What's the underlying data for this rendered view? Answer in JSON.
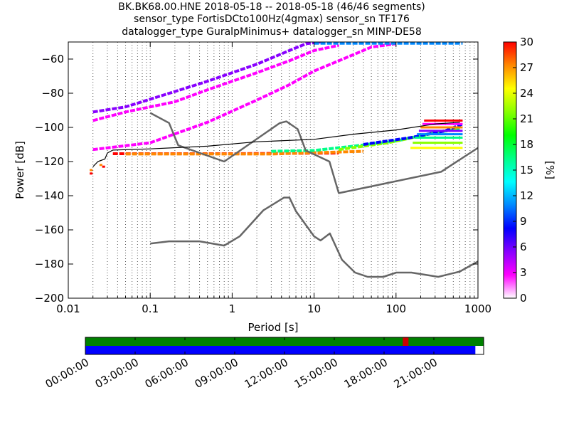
{
  "chart_data": {
    "type": "heatmap",
    "title_lines": [
      "BK.BK68.00.HNE   2018-05-18 -- 2018-05-18  (46/46 segments)",
      "sensor_type FortisDCto100Hz(4gmax) sensor_sn TF176",
      "datalogger_type GuralpMinimus+ datalogger_sn MINP-DE58"
    ],
    "xlabel": "Period [s]",
    "ylabel": "Power [dB]",
    "xscale": "log",
    "xlim": [
      0.01,
      1000
    ],
    "ylim": [
      -200,
      -50
    ],
    "x_ticks": [
      0.01,
      0.1,
      1,
      10,
      100,
      1000
    ],
    "x_tick_labels": [
      "0.01",
      "0.1",
      "1",
      "10",
      "100",
      "1000"
    ],
    "y_ticks": [
      -200,
      -180,
      -160,
      -140,
      -120,
      -100,
      -80,
      -60
    ],
    "y_tick_labels": [
      "−200",
      "−180",
      "−160",
      "−140",
      "−120",
      "−100",
      "−80",
      "−60"
    ],
    "grid": "dotted-vertical",
    "colorbar": {
      "label": "[%]",
      "range": [
        0,
        30
      ],
      "ticks": [
        0,
        3,
        6,
        9,
        12,
        15,
        18,
        21,
        24,
        27,
        30
      ],
      "tick_labels": [
        "0",
        "3",
        "6",
        "9",
        "12",
        "15",
        "18",
        "21",
        "24",
        "27",
        "30"
      ],
      "colors": [
        "#ffffff",
        "#ff00ff",
        "#8800ff",
        "#0000ff",
        "#0088ff",
        "#00ffff",
        "#00ff88",
        "#00ff00",
        "#88ff00",
        "#ffff00",
        "#ff8800",
        "#ff0000"
      ]
    },
    "series": [
      {
        "role": "high-noise-model",
        "color": "#666666",
        "points": [
          [
            0.1,
            -91.5
          ],
          [
            0.17,
            -97.4
          ],
          [
            0.22,
            -110.5
          ],
          [
            0.8,
            -120
          ],
          [
            3.8,
            -97.5
          ],
          [
            4.6,
            -96.5
          ],
          [
            6.3,
            -101
          ],
          [
            7.9,
            -113.5
          ],
          [
            15.4,
            -120
          ],
          [
            20,
            -138.5
          ],
          [
            354.8,
            -126
          ],
          [
            1000,
            -112
          ]
        ]
      },
      {
        "role": "low-noise-model",
        "color": "#666666",
        "points": [
          [
            0.1,
            -168
          ],
          [
            0.17,
            -166.7
          ],
          [
            0.4,
            -166.7
          ],
          [
            0.8,
            -169.2
          ],
          [
            1.24,
            -163.7
          ],
          [
            2.4,
            -148.6
          ],
          [
            4.3,
            -141.1
          ],
          [
            5,
            -141.1
          ],
          [
            6,
            -149
          ],
          [
            10,
            -163.8
          ],
          [
            12,
            -166.2
          ],
          [
            15.6,
            -162.1
          ],
          [
            21.9,
            -177.5
          ],
          [
            31.6,
            -185
          ],
          [
            45,
            -187.5
          ],
          [
            70,
            -187.5
          ],
          [
            101,
            -185
          ],
          [
            154,
            -185
          ],
          [
            328,
            -187.5
          ],
          [
            600,
            -184.4
          ],
          [
            1000,
            -178.5
          ]
        ]
      },
      {
        "role": "highest-psd",
        "color": "#000000",
        "points": [
          [
            0.02,
            -123
          ],
          [
            0.023,
            -120
          ],
          [
            0.028,
            -118.5
          ],
          [
            0.03,
            -115
          ],
          [
            0.035,
            -113.3
          ],
          [
            0.1,
            -112.6
          ],
          [
            0.5,
            -111
          ],
          [
            2,
            -108.4
          ],
          [
            10,
            -107
          ],
          [
            30,
            -104
          ],
          [
            100,
            -101.5
          ],
          [
            300,
            -98
          ],
          [
            600,
            -97
          ]
        ]
      }
    ],
    "density_bands": [
      {
        "name": "flat-red",
        "points": [
          [
            0.035,
            -115.4
          ],
          [
            1,
            -115.4
          ],
          [
            20,
            -115
          ]
        ],
        "level": 30
      },
      {
        "name": "flat-red-long",
        "points": [
          [
            0.05,
            -115.6
          ],
          [
            3,
            -115.6
          ],
          [
            40,
            -114
          ]
        ],
        "level": 28
      },
      {
        "name": "diag-1",
        "points": [
          [
            0.02,
            -91
          ],
          [
            0.05,
            -88
          ],
          [
            0.2,
            -79
          ],
          [
            0.5,
            -73
          ],
          [
            2,
            -63
          ],
          [
            5,
            -55
          ],
          [
            8,
            -51
          ],
          [
            12,
            -50
          ]
        ],
        "level": 5
      },
      {
        "name": "diag-2",
        "points": [
          [
            0.02,
            -96
          ],
          [
            0.05,
            -91
          ],
          [
            0.2,
            -85
          ],
          [
            0.5,
            -78
          ],
          [
            2,
            -68
          ],
          [
            5,
            -61
          ],
          [
            10,
            -55
          ],
          [
            20,
            -52
          ]
        ],
        "level": 4
      },
      {
        "name": "diag-3",
        "points": [
          [
            0.02,
            -113
          ],
          [
            0.1,
            -109
          ],
          [
            0.5,
            -97
          ],
          [
            2,
            -84
          ],
          [
            5,
            -75
          ],
          [
            10,
            -67
          ],
          [
            20,
            -61
          ],
          [
            50,
            -53
          ],
          [
            100,
            -51
          ]
        ],
        "level": 3
      },
      {
        "name": "rise-band",
        "points": [
          [
            3,
            -114
          ],
          [
            10,
            -113.5
          ],
          [
            30,
            -111
          ],
          [
            100,
            -108
          ],
          [
            300,
            -103
          ],
          [
            600,
            -101
          ]
        ],
        "level": 16
      },
      {
        "name": "rise-band-b",
        "points": [
          [
            20,
            -113
          ],
          [
            80,
            -109
          ],
          [
            200,
            -105
          ],
          [
            600,
            -100
          ]
        ],
        "level": 22
      },
      {
        "name": "rise-band-c",
        "points": [
          [
            40,
            -110
          ],
          [
            150,
            -106
          ],
          [
            400,
            -102
          ],
          [
            650,
            -98
          ]
        ],
        "level": 8
      },
      {
        "name": "top-cyan",
        "points": [
          [
            10,
            -50.7
          ],
          [
            100,
            -50.7
          ],
          [
            650,
            -50.7
          ]
        ],
        "level": 12
      }
    ],
    "scatter_marks": [
      {
        "x": 0.019,
        "y": -127,
        "level": 30
      },
      {
        "x": 0.019,
        "y": -125,
        "level": 28
      },
      {
        "x": 0.025,
        "y": -122,
        "level": 28
      },
      {
        "x": 0.027,
        "y": -123,
        "level": 30
      }
    ],
    "timeline": {
      "tick_labels": [
        "00:00:00",
        "03:00:00",
        "06:00:00",
        "09:00:00",
        "12:00:00",
        "15:00:00",
        "18:00:00",
        "21:00:00"
      ],
      "tick_hours": [
        0,
        3,
        6,
        9,
        12,
        15,
        18,
        21
      ],
      "range_hours": [
        0,
        24
      ],
      "tracks": [
        {
          "role": "data-availability",
          "color": "#008000",
          "start": 0,
          "end": 24
        },
        {
          "role": "psd-coverage",
          "color": "#0000ff",
          "start": 0,
          "end": 23.5
        }
      ],
      "marks": [
        {
          "color": "#cc0000",
          "hour": 19.3
        }
      ]
    }
  }
}
